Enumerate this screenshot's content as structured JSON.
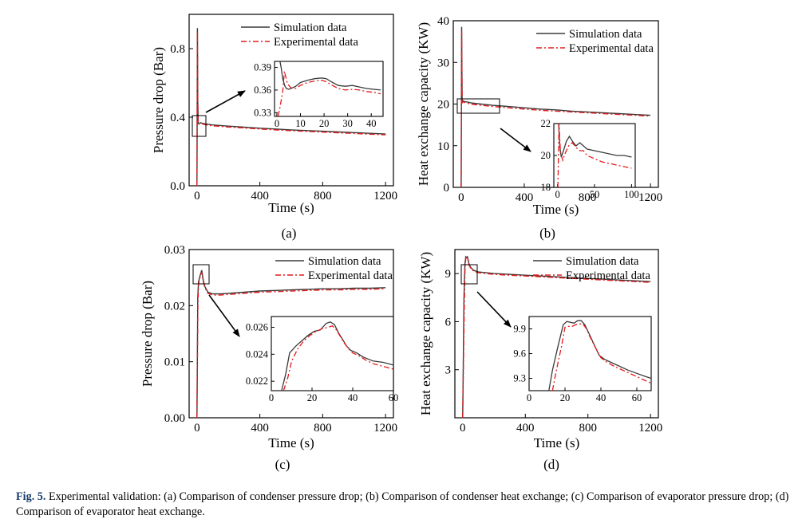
{
  "figure": {
    "caption_lead": "Fig. 5.",
    "caption_text": "Experimental validation: (a) Comparison of condenser pressure drop; (b) Comparison of condenser heat exchange; (c) Comparison of evaporator pressure drop; (d) Comparison of evaporator heat exchange."
  },
  "colors": {
    "simulation": "#3a3a3a",
    "experimental": "#e41a1c",
    "axis": "#000000"
  },
  "chart_data": [
    {
      "id": "a",
      "type": "line",
      "panel_label": "(a)",
      "xlabel": "Time (s)",
      "ylabel": "Pressure drop (Bar)",
      "xlim": [
        -50,
        1250
      ],
      "ylim": [
        0,
        1.0
      ],
      "xticks": [
        0,
        400,
        800,
        1200
      ],
      "xtick_labels": [
        "0",
        "400",
        "800",
        "1200"
      ],
      "yticks": [
        0,
        0.4,
        0.8
      ],
      "ytick_labels": [
        "0.0",
        "0.4",
        "0.8"
      ],
      "legend": {
        "position": "top-right",
        "entries": [
          "Simulation data",
          "Experimental data"
        ]
      },
      "series": [
        {
          "name": "Simulation data",
          "style": "solid",
          "x": [
            0,
            3,
            5,
            8,
            10,
            15,
            20,
            25,
            30,
            35,
            40,
            60,
            100,
            200,
            300,
            400,
            500,
            600,
            700,
            800,
            900,
            1000,
            1100,
            1200
          ],
          "y": [
            0,
            0.92,
            0.5,
            0.365,
            0.362,
            0.362,
            0.366,
            0.368,
            0.365,
            0.364,
            0.363,
            0.36,
            0.355,
            0.348,
            0.342,
            0.336,
            0.331,
            0.326,
            0.322,
            0.318,
            0.314,
            0.31,
            0.306,
            0.302
          ]
        },
        {
          "name": "Experimental data",
          "style": "dashdot",
          "x": [
            0,
            3,
            6,
            8,
            10,
            15,
            20,
            25,
            30,
            35,
            40,
            60,
            100,
            200,
            300,
            400,
            500,
            600,
            700,
            800,
            900,
            1000,
            1100,
            1200
          ],
          "y": [
            0,
            0.9,
            0.4,
            0.363,
            0.36,
            0.36,
            0.364,
            0.366,
            0.361,
            0.361,
            0.359,
            0.355,
            0.35,
            0.343,
            0.337,
            0.331,
            0.326,
            0.321,
            0.317,
            0.313,
            0.309,
            0.305,
            0.301,
            0.297
          ]
        }
      ],
      "inset": {
        "xlim": [
          -1,
          45
        ],
        "ylim": [
          0.325,
          0.398
        ],
        "xticks": [
          0,
          10,
          20,
          30,
          40
        ],
        "xtick_labels": [
          "0",
          "10",
          "20",
          "30",
          "40"
        ],
        "yticks": [
          0.33,
          0.36,
          0.39
        ],
        "ytick_labels": [
          "0.33",
          "0.36",
          "0.39"
        ],
        "series": [
          {
            "name": "Simulation data",
            "x": [
              1.2,
              1.8,
              2.5,
              3.3,
              4,
              5,
              6,
              8,
              10,
              13,
              16,
              19,
              21,
              23,
              26,
              29,
              32,
              35,
              38,
              41,
              44
            ],
            "y": [
              0.4,
              0.39,
              0.375,
              0.366,
              0.362,
              0.361,
              0.362,
              0.365,
              0.37,
              0.373,
              0.375,
              0.376,
              0.375,
              0.371,
              0.366,
              0.365,
              0.366,
              0.364,
              0.362,
              0.361,
              0.36
            ]
          },
          {
            "name": "Experimental data",
            "x": [
              0.5,
              1.2,
              2.5,
              3.2,
              4.5,
              6,
              8,
              10,
              13,
              16,
              19,
              21,
              23,
              26,
              29,
              32,
              35,
              38,
              41,
              44
            ],
            "y": [
              0.325,
              0.335,
              0.358,
              0.385,
              0.368,
              0.363,
              0.362,
              0.366,
              0.37,
              0.372,
              0.373,
              0.371,
              0.367,
              0.362,
              0.36,
              0.361,
              0.36,
              0.358,
              0.357,
              0.355
            ]
          }
        ]
      }
    },
    {
      "id": "b",
      "type": "line",
      "panel_label": "(b)",
      "xlabel": "Time (s)",
      "ylabel": "Heat exchange capacity (KW)",
      "xlim": [
        -50,
        1250
      ],
      "ylim": [
        0,
        40
      ],
      "xticks": [
        0,
        400,
        800,
        1200
      ],
      "xtick_labels": [
        "0",
        "400",
        "800",
        "1200"
      ],
      "yticks": [
        0,
        10,
        20,
        30,
        40
      ],
      "ytick_labels": [
        "0",
        "10",
        "20",
        "30",
        "40"
      ],
      "legend": {
        "position": "top-right",
        "entries": [
          "Simulation data",
          "Experimental data"
        ]
      },
      "series": [
        {
          "name": "Simulation data",
          "style": "solid",
          "x": [
            0,
            3,
            6,
            10,
            20,
            40,
            60,
            100,
            200,
            300,
            400,
            500,
            600,
            700,
            800,
            900,
            1000,
            1100,
            1200
          ],
          "y": [
            0,
            38.5,
            20.5,
            20.8,
            20.6,
            20.5,
            20.3,
            20.1,
            19.7,
            19.4,
            19.1,
            18.8,
            18.6,
            18.3,
            18.1,
            17.9,
            17.7,
            17.5,
            17.3
          ]
        },
        {
          "name": "Experimental data",
          "style": "dashdot",
          "x": [
            0,
            3,
            6,
            10,
            20,
            40,
            60,
            100,
            200,
            300,
            400,
            500,
            600,
            700,
            800,
            900,
            1000,
            1100,
            1200
          ],
          "y": [
            0,
            37.5,
            20.2,
            20.6,
            20.4,
            20.2,
            20.0,
            19.8,
            19.4,
            19.1,
            18.8,
            18.5,
            18.3,
            18.1,
            17.9,
            17.7,
            17.5,
            17.3,
            17.1
          ]
        }
      ],
      "inset": {
        "xlim": [
          -5,
          105
        ],
        "ylim": [
          18,
          22
        ],
        "xticks": [
          0,
          50,
          100
        ],
        "xtick_labels": [
          "0",
          "50",
          "100"
        ],
        "yticks": [
          18,
          20,
          22
        ],
        "ytick_labels": [
          "18",
          "20",
          "22"
        ],
        "series": [
          {
            "name": "Simulation data",
            "x": [
              1.5,
              3,
              5,
              8,
              12,
              16,
              20,
              25,
              30,
              35,
              40,
              50,
              60,
              70,
              80,
              90,
              100
            ],
            "y": [
              22,
              20.6,
              19.9,
              20.3,
              20.9,
              21.2,
              20.9,
              20.6,
              20.8,
              20.6,
              20.4,
              20.3,
              20.2,
              20.1,
              20.0,
              20.0,
              19.9
            ]
          },
          {
            "name": "Experimental data",
            "x": [
              0.5,
              2,
              4,
              7,
              10,
              15,
              20,
              25,
              30,
              35,
              40,
              50,
              60,
              70,
              80,
              90,
              100
            ],
            "y": [
              18,
              22,
              20.2,
              19.7,
              20.1,
              20.6,
              20.8,
              20.5,
              20.3,
              20.3,
              20.0,
              19.8,
              19.6,
              19.5,
              19.4,
              19.3,
              19.2
            ]
          }
        ]
      }
    },
    {
      "id": "c",
      "type": "line",
      "panel_label": "(c)",
      "xlabel": "Time (s)",
      "ylabel": "Pressure drop (Bar)",
      "xlim": [
        -50,
        1250
      ],
      "ylim": [
        0,
        0.03
      ],
      "xticks": [
        0,
        400,
        800,
        1200
      ],
      "xtick_labels": [
        "0",
        "400",
        "800",
        "1200"
      ],
      "yticks": [
        0,
        0.01,
        0.02,
        0.03
      ],
      "ytick_labels": [
        "0.00",
        "0.01",
        "0.02",
        "0.03"
      ],
      "legend": {
        "position": "top-right",
        "entries": [
          "Simulation data",
          "Experimental data"
        ]
      },
      "series": [
        {
          "name": "Simulation data",
          "style": "solid",
          "x": [
            0,
            5,
            10,
            20,
            30,
            40,
            50,
            70,
            100,
            150,
            200,
            300,
            400,
            500,
            600,
            700,
            800,
            900,
            1000,
            1100,
            1200
          ],
          "y": [
            0,
            0.0215,
            0.0243,
            0.0254,
            0.0263,
            0.0245,
            0.0234,
            0.0224,
            0.0221,
            0.0221,
            0.0222,
            0.0224,
            0.0226,
            0.0227,
            0.0228,
            0.0229,
            0.023,
            0.023,
            0.0231,
            0.0231,
            0.0232
          ]
        },
        {
          "name": "Experimental data",
          "style": "dashdot",
          "x": [
            0,
            6,
            10,
            20,
            30,
            40,
            50,
            70,
            100,
            150,
            200,
            300,
            400,
            500,
            600,
            700,
            800,
            900,
            1000,
            1100,
            1200
          ],
          "y": [
            0,
            0.0205,
            0.0238,
            0.0252,
            0.026,
            0.0243,
            0.0232,
            0.0222,
            0.0219,
            0.0219,
            0.022,
            0.0222,
            0.0224,
            0.0225,
            0.0226,
            0.0227,
            0.0228,
            0.0228,
            0.0229,
            0.0229,
            0.023
          ]
        }
      ],
      "inset": {
        "xlim": [
          0,
          60
        ],
        "ylim": [
          0.0213,
          0.0268
        ],
        "xticks": [
          0,
          20,
          40,
          60
        ],
        "xtick_labels": [
          "0",
          "20",
          "40",
          "60"
        ],
        "yticks": [
          0.022,
          0.024,
          0.026
        ],
        "ytick_labels": [
          "0.022",
          "0.024",
          "0.026"
        ],
        "series": [
          {
            "name": "Simulation data",
            "x": [
              5,
              7,
              9,
              12,
              15,
              18,
              21,
              24,
              27,
              29,
              31,
              33,
              35,
              37,
              39,
              42,
              45,
              50,
              55,
              60
            ],
            "y": [
              0.0213,
              0.0225,
              0.0241,
              0.0246,
              0.025,
              0.0254,
              0.0257,
              0.0258,
              0.0263,
              0.0264,
              0.0262,
              0.0256,
              0.0251,
              0.0246,
              0.0243,
              0.0241,
              0.0238,
              0.0235,
              0.0234,
              0.0232
            ]
          },
          {
            "name": "Experimental data",
            "x": [
              6,
              8,
              10,
              13,
              16,
              19,
              22,
              25,
              28,
              30,
              32,
              34,
              36,
              38,
              40,
              43,
              46,
              50,
              55,
              60
            ],
            "y": [
              0.0213,
              0.0222,
              0.0235,
              0.0244,
              0.025,
              0.0254,
              0.0257,
              0.0259,
              0.026,
              0.0261,
              0.0258,
              0.0253,
              0.0248,
              0.0244,
              0.0241,
              0.0239,
              0.0236,
              0.0233,
              0.0231,
              0.0229
            ]
          }
        ]
      }
    },
    {
      "id": "d",
      "type": "line",
      "panel_label": "(d)",
      "xlabel": "Time (s)",
      "ylabel": "Heat exchange capacity (KW)",
      "xlim": [
        -50,
        1250
      ],
      "ylim": [
        0,
        10.5
      ],
      "xticks": [
        0,
        400,
        800,
        1200
      ],
      "xtick_labels": [
        "0",
        "400",
        "800",
        "1200"
      ],
      "yticks": [
        3,
        6,
        9
      ],
      "ytick_labels": [
        "3",
        "6",
        "9"
      ],
      "legend": {
        "position": "top-right",
        "entries": [
          "Simulation data",
          "Experimental data"
        ]
      },
      "series": [
        {
          "name": "Simulation data",
          "style": "solid",
          "x": [
            0,
            8,
            14,
            20,
            25,
            30,
            35,
            40,
            50,
            70,
            100,
            200,
            300,
            400,
            500,
            600,
            700,
            800,
            900,
            1000,
            1100,
            1200
          ],
          "y": [
            0,
            7.5,
            9.6,
            10.05,
            10.0,
            10.05,
            9.85,
            9.6,
            9.4,
            9.2,
            9.1,
            9.0,
            8.95,
            8.9,
            8.85,
            8.8,
            8.75,
            8.7,
            8.65,
            8.6,
            8.55,
            8.5
          ]
        },
        {
          "name": "Experimental data",
          "style": "dashdot",
          "x": [
            0,
            10,
            15,
            20,
            25,
            30,
            35,
            40,
            50,
            70,
            100,
            200,
            300,
            400,
            500,
            600,
            700,
            800,
            900,
            1000,
            1100,
            1200
          ],
          "y": [
            0,
            7.0,
            9.4,
            9.98,
            9.98,
            10.0,
            9.8,
            9.55,
            9.35,
            9.15,
            9.05,
            8.95,
            8.9,
            8.85,
            8.8,
            8.75,
            8.7,
            8.65,
            8.6,
            8.55,
            8.5,
            8.45
          ]
        }
      ],
      "inset": {
        "xlim": [
          0,
          68
        ],
        "ylim": [
          9.15,
          10.05
        ],
        "xticks": [
          0,
          20,
          40,
          60
        ],
        "xtick_labels": [
          "0",
          "20",
          "40",
          "60"
        ],
        "yticks": [
          9.3,
          9.6,
          9.9
        ],
        "ytick_labels": [
          "9.3",
          "9.6",
          "9.9"
        ],
        "series": [
          {
            "name": "Simulation data",
            "x": [
              11,
              13,
              16,
              19,
              21,
              23,
              25,
              27,
              29,
              31,
              33,
              36,
              39,
              42,
              46,
              50,
              55,
              60,
              65,
              68
            ],
            "y": [
              9.15,
              9.4,
              9.68,
              9.95,
              9.99,
              9.98,
              9.97,
              10.0,
              10.0,
              9.95,
              9.86,
              9.72,
              9.58,
              9.53,
              9.49,
              9.45,
              9.4,
              9.36,
              9.32,
              9.3
            ]
          },
          {
            "name": "Experimental data",
            "x": [
              13,
              15,
              18,
              20,
              22,
              24,
              26,
              28,
              30,
              32,
              34,
              37,
              40,
              43,
              47,
              50,
              55,
              60,
              65,
              68
            ],
            "y": [
              9.15,
              9.38,
              9.68,
              9.92,
              9.93,
              9.93,
              9.95,
              9.96,
              9.96,
              9.9,
              9.8,
              9.67,
              9.55,
              9.5,
              9.45,
              9.42,
              9.37,
              9.32,
              9.27,
              9.24
            ]
          }
        ]
      }
    }
  ]
}
